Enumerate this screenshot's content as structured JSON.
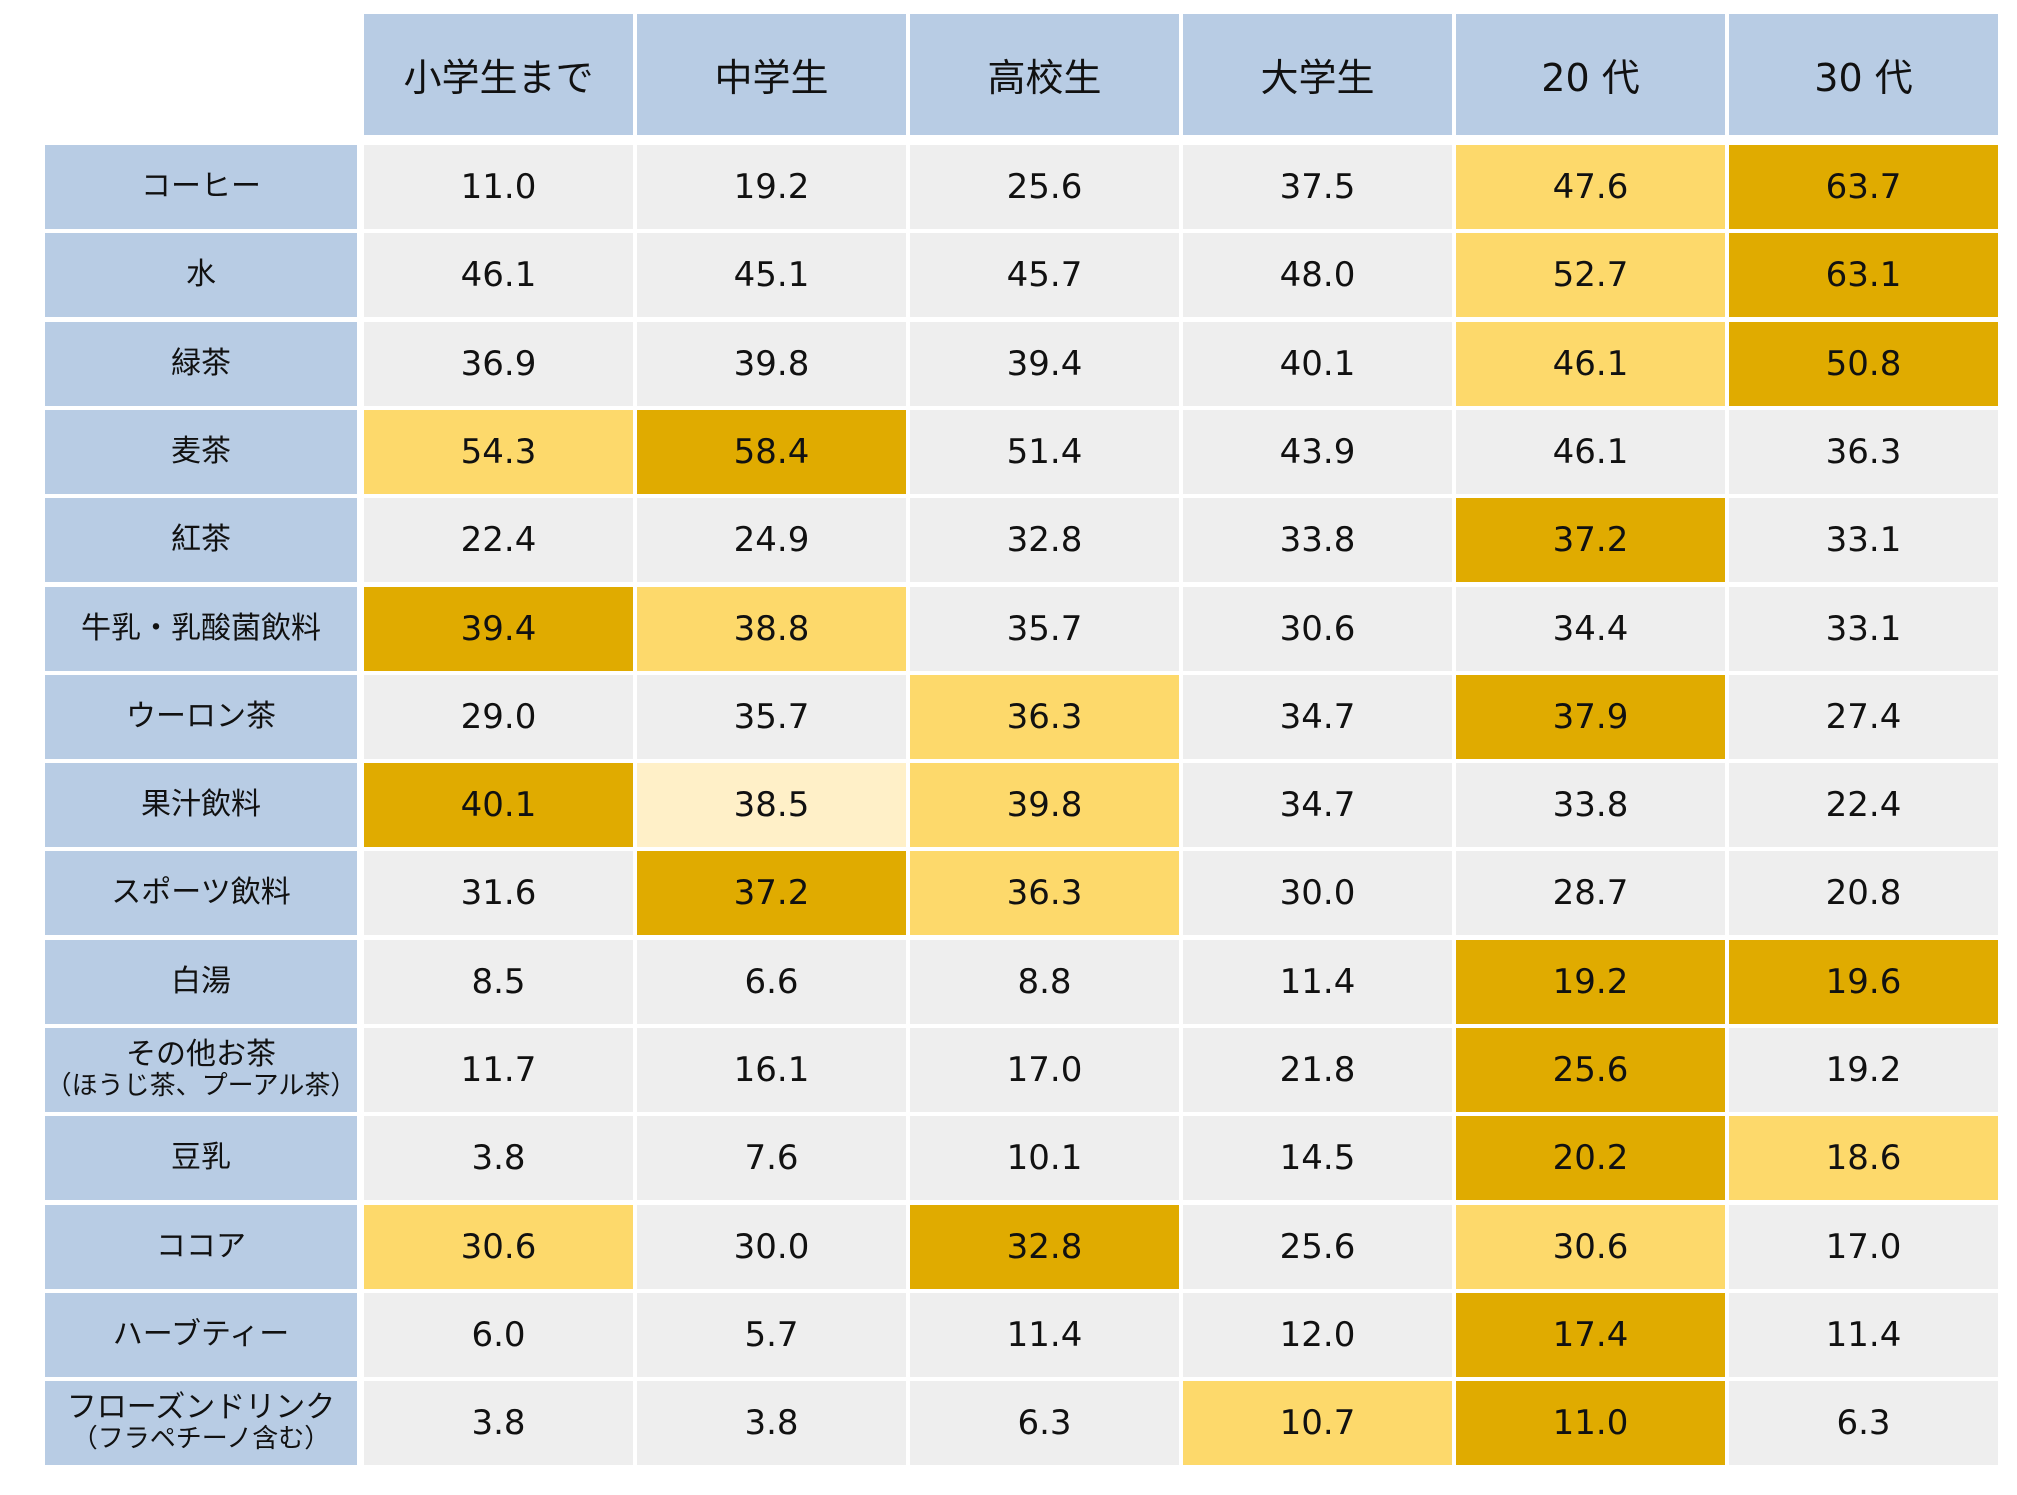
{
  "colors": {
    "header": "#b8cce4",
    "neutral": "#eeeeee",
    "high": "#e0ab00",
    "mid": "#fdd96b",
    "low": "#fff0c8"
  },
  "chart_data": {
    "type": "table",
    "columns": [
      "小学生まで",
      "中学生",
      "高校生",
      "大学生",
      "20 代",
      "30 代"
    ],
    "rows": [
      {
        "label": "コーヒー",
        "values": [
          11.0,
          19.2,
          25.6,
          37.5,
          47.6,
          63.7
        ],
        "highlight": [
          "",
          "",
          "",
          "",
          "mid",
          "high"
        ]
      },
      {
        "label": "水",
        "values": [
          46.1,
          45.1,
          45.7,
          48.0,
          52.7,
          63.1
        ],
        "highlight": [
          "",
          "",
          "",
          "",
          "mid",
          "high"
        ]
      },
      {
        "label": "緑茶",
        "values": [
          36.9,
          39.8,
          39.4,
          40.1,
          46.1,
          50.8
        ],
        "highlight": [
          "",
          "",
          "",
          "",
          "mid",
          "high"
        ]
      },
      {
        "label": "麦茶",
        "values": [
          54.3,
          58.4,
          51.4,
          43.9,
          46.1,
          36.3
        ],
        "highlight": [
          "mid",
          "high",
          "",
          "",
          "",
          ""
        ]
      },
      {
        "label": "紅茶",
        "values": [
          22.4,
          24.9,
          32.8,
          33.8,
          37.2,
          33.1
        ],
        "highlight": [
          "",
          "",
          "",
          "",
          "high",
          ""
        ]
      },
      {
        "label": "牛乳・乳酸菌飲料",
        "values": [
          39.4,
          38.8,
          35.7,
          30.6,
          34.4,
          33.1
        ],
        "highlight": [
          "high",
          "mid",
          "",
          "",
          "",
          ""
        ]
      },
      {
        "label": "ウーロン茶",
        "values": [
          29.0,
          35.7,
          36.3,
          34.7,
          37.9,
          27.4
        ],
        "highlight": [
          "",
          "",
          "mid",
          "",
          "high",
          ""
        ]
      },
      {
        "label": "果汁飲料",
        "values": [
          40.1,
          38.5,
          39.8,
          34.7,
          33.8,
          22.4
        ],
        "highlight": [
          "high",
          "low",
          "mid",
          "",
          "",
          ""
        ]
      },
      {
        "label": "スポーツ飲料",
        "values": [
          31.6,
          37.2,
          36.3,
          30.0,
          28.7,
          20.8
        ],
        "highlight": [
          "",
          "high",
          "mid",
          "",
          "",
          ""
        ]
      },
      {
        "label": "白湯",
        "values": [
          8.5,
          6.6,
          8.8,
          11.4,
          19.2,
          19.6
        ],
        "highlight": [
          "",
          "",
          "",
          "",
          "high",
          "high"
        ]
      },
      {
        "label": "その他お茶",
        "sublabel": "（ほうじ茶、プーアル茶）",
        "values": [
          11.7,
          16.1,
          17.0,
          21.8,
          25.6,
          19.2
        ],
        "highlight": [
          "",
          "",
          "",
          "",
          "high",
          ""
        ]
      },
      {
        "label": "豆乳",
        "values": [
          3.8,
          7.6,
          10.1,
          14.5,
          20.2,
          18.6
        ],
        "highlight": [
          "",
          "",
          "",
          "",
          "high",
          "mid"
        ]
      },
      {
        "label": "ココア",
        "values": [
          30.6,
          30.0,
          32.8,
          25.6,
          30.6,
          17.0
        ],
        "highlight": [
          "mid",
          "",
          "high",
          "",
          "mid",
          ""
        ]
      },
      {
        "label": "ハーブティー",
        "values": [
          6.0,
          5.7,
          11.4,
          12.0,
          17.4,
          11.4
        ],
        "highlight": [
          "",
          "",
          "",
          "",
          "high",
          ""
        ]
      },
      {
        "label": "フローズンドリンク",
        "sublabel": "（フラペチーノ含む）",
        "values": [
          3.8,
          3.8,
          6.3,
          10.7,
          11.0,
          6.3
        ],
        "highlight": [
          "",
          "",
          "",
          "mid",
          "high",
          ""
        ]
      }
    ]
  }
}
